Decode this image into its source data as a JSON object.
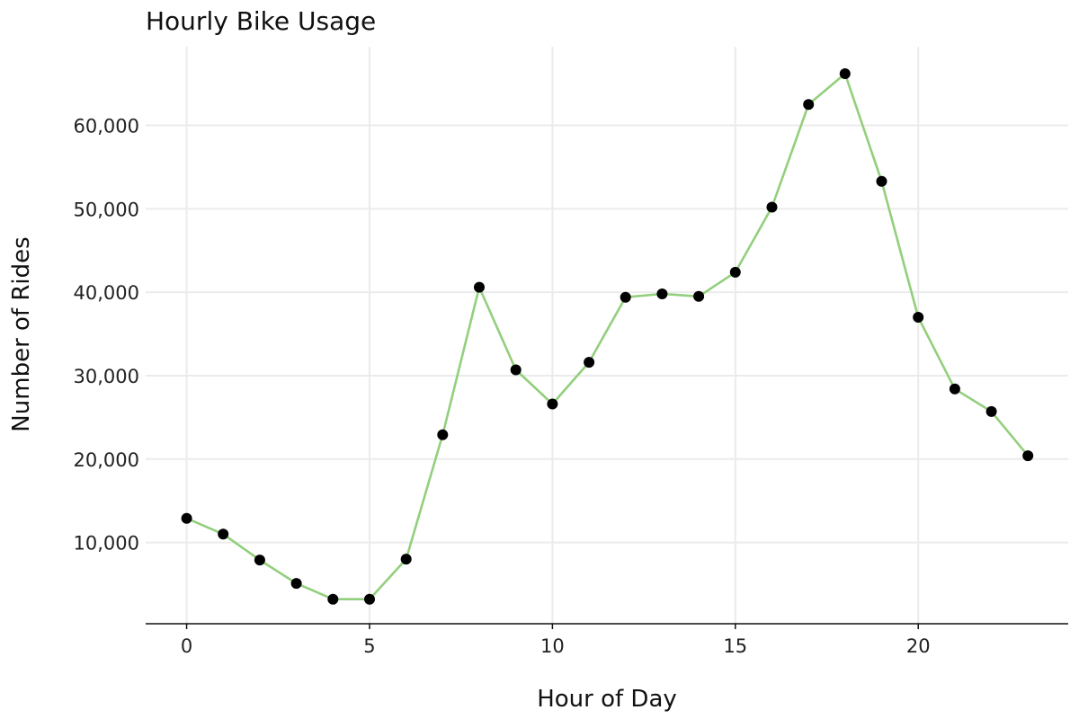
{
  "chart_data": {
    "type": "line",
    "title": "Hourly Bike Usage",
    "xlabel": "Hour of Day",
    "ylabel": "Number of Rides",
    "x": [
      0,
      1,
      2,
      3,
      4,
      5,
      6,
      7,
      8,
      9,
      10,
      11,
      12,
      13,
      14,
      15,
      16,
      17,
      18,
      19,
      20,
      21,
      22,
      23
    ],
    "series": [
      {
        "values": [
          12900,
          11000,
          7900,
          5100,
          3200,
          3200,
          8000,
          22900,
          40600,
          30700,
          26600,
          31600,
          39400,
          39800,
          39500,
          42400,
          50200,
          62500,
          66200,
          53300,
          37000,
          28400,
          25700,
          20400
        ]
      }
    ],
    "xlim": [
      -1.1,
      24.1
    ],
    "ylim": [
      -16.12,
      66200
    ],
    "ylim_display": [
      0,
      69200
    ],
    "x_ticks": [
      0,
      5,
      10,
      15,
      20
    ],
    "x_tick_labels": [
      "0",
      "5",
      "10",
      "15",
      "20"
    ],
    "y_ticks": [
      10000,
      20000,
      30000,
      40000,
      50000,
      60000
    ],
    "y_tick_labels": [
      "10,000",
      "20,000",
      "30,000",
      "40,000",
      "50,000",
      "60,000"
    ],
    "grid": true,
    "legend": "none",
    "colors": {
      "line": "#93cf7d",
      "points": "#000000",
      "grid": "#ebebeb",
      "axis": "#111111"
    }
  }
}
